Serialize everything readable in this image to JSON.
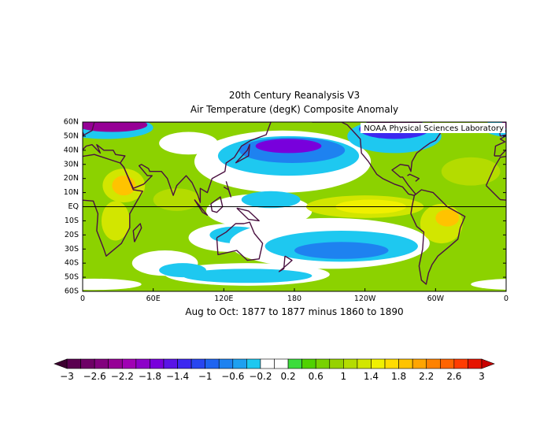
{
  "title": "20th Century Reanalysis V3",
  "subtitle": "Air Temperature (degK) Composite Anomaly",
  "credit": "NOAA Physical Sciences Laboratory",
  "lat_labels": [
    "60N",
    "50N",
    "40N",
    "30N",
    "20N",
    "10N",
    "EQ",
    "10S",
    "20S",
    "30S",
    "40S",
    "50S",
    "60S"
  ],
  "lon_labels": [
    "0",
    "60E",
    "120E",
    "180",
    "120W",
    "60W",
    "0"
  ],
  "period": "Aug to Oct: 1877 to 1877 minus 1860 to 1890",
  "colorbar": {
    "labels": [
      "−3",
      "−2.6",
      "−2.2",
      "−1.8",
      "−1.4",
      "−1",
      "−0.6",
      "−0.2",
      "0.2",
      "0.6",
      "1",
      "1.4",
      "1.8",
      "2.2",
      "2.6",
      "3"
    ],
    "colors": [
      "#5a0050",
      "#6e0066",
      "#82007e",
      "#960096",
      "#a000b4",
      "#8c00c8",
      "#7800dc",
      "#5a14e6",
      "#3c28f0",
      "#2846f0",
      "#1e64f0",
      "#1e82f0",
      "#1ea0f0",
      "#1ec8f0",
      "#ffffff",
      "#ffffff",
      "#3cdc3c",
      "#50d200",
      "#78d200",
      "#96d200",
      "#b4dc00",
      "#d2e600",
      "#f0f000",
      "#ffdc00",
      "#ffc300",
      "#ffa500",
      "#ff8200",
      "#ff6400",
      "#ff3c00",
      "#e61400"
    ],
    "under_color": "#3c0030",
    "over_color": "#c80000"
  }
}
